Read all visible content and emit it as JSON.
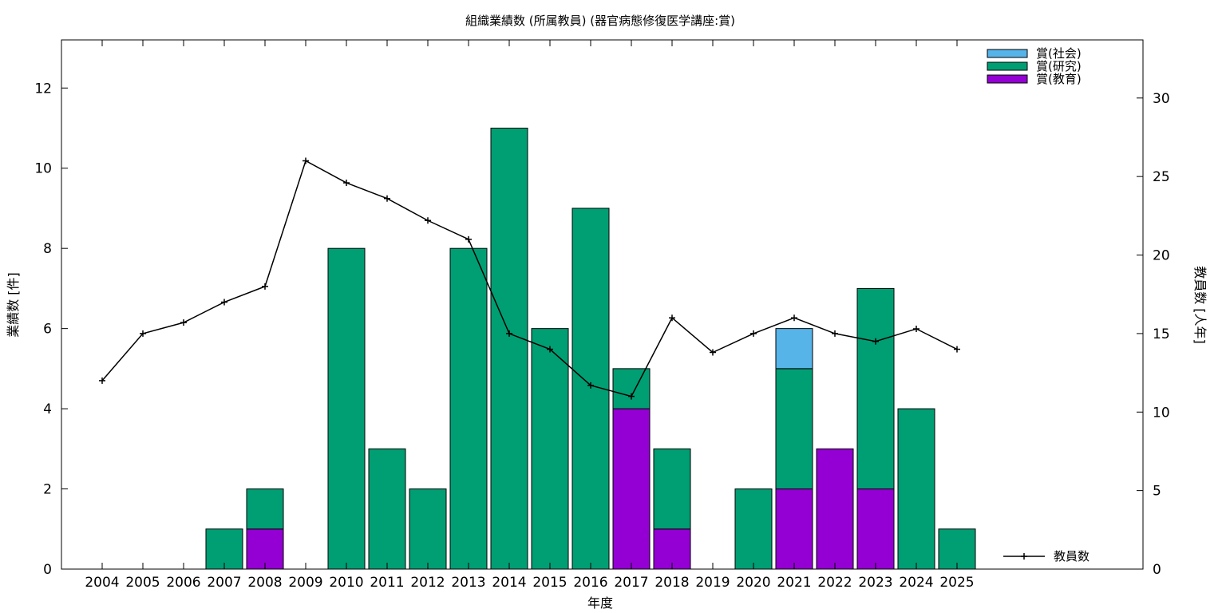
{
  "chart_data": {
    "type": "bar",
    "title": "組織業績数 (所属教員) (器官病態修復医学講座:賞)",
    "xlabel": "年度",
    "ylabel": "業績数 [件]",
    "y2label": "教員数 [人年]",
    "ylim": [
      0,
      13.2
    ],
    "y2lim": [
      0,
      33.7
    ],
    "yticks": [
      0,
      2,
      4,
      6,
      8,
      10,
      12
    ],
    "y2ticks": [
      0,
      5,
      10,
      15,
      20,
      25,
      30
    ],
    "stacked": true,
    "legend_position": "top-right",
    "categories": [
      "2004",
      "2005",
      "2006",
      "2007",
      "2008",
      "2009",
      "2010",
      "2011",
      "2012",
      "2013",
      "2014",
      "2015",
      "2016",
      "2017",
      "2018",
      "2019",
      "2020",
      "2021",
      "2022",
      "2023",
      "2024",
      "2025"
    ],
    "series": [
      {
        "name": "賞(教育)",
        "color": "#9400d3",
        "values": [
          0,
          0,
          0,
          0,
          1,
          0,
          0,
          0,
          0,
          0,
          0,
          0,
          0,
          4,
          1,
          0,
          0,
          2,
          3,
          2,
          0,
          0
        ]
      },
      {
        "name": "賞(研究)",
        "color": "#009e73",
        "values": [
          0,
          0,
          0,
          1,
          1,
          0,
          8,
          3,
          2,
          8,
          11,
          6,
          9,
          1,
          2,
          0,
          2,
          3,
          0,
          5,
          4,
          1
        ]
      },
      {
        "name": "賞(社会)",
        "color": "#56b4e9",
        "values": [
          0,
          0,
          0,
          0,
          0,
          0,
          0,
          0,
          0,
          0,
          0,
          0,
          0,
          0,
          0,
          0,
          0,
          1,
          0,
          0,
          0,
          0
        ]
      }
    ],
    "line_series": {
      "name": "教員数",
      "axis": "y2",
      "color": "#000000",
      "values": [
        12,
        15,
        15.7,
        17,
        18,
        26,
        24.6,
        23.6,
        22.2,
        21,
        15,
        14,
        11.7,
        11,
        16,
        13.8,
        15,
        16,
        15,
        14.5,
        15.3,
        14
      ]
    }
  }
}
